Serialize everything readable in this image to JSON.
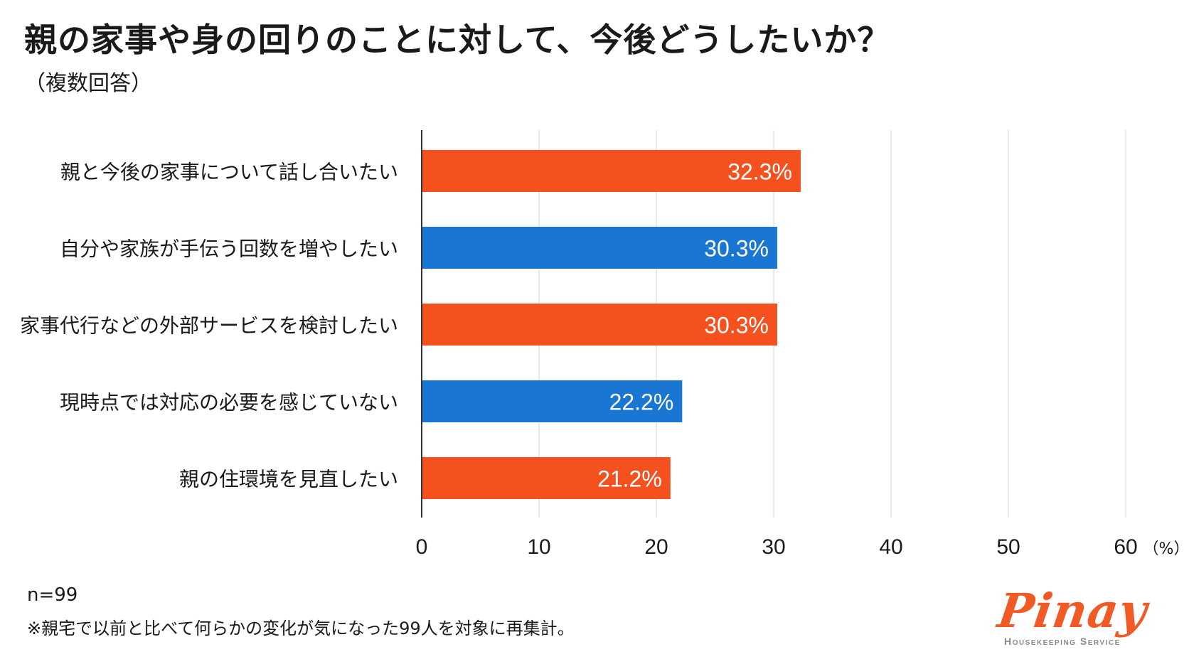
{
  "header": {
    "title": "親の家事や身の回りのことに対して、今後どうしたいか？",
    "subtitle": "（複数回答）"
  },
  "chart_data": {
    "type": "bar",
    "orientation": "horizontal",
    "categories": [
      "親と今後の家事について話し合いたい",
      "自分や家族が手伝う回数を増やしたい",
      "家事代行などの外部サービスを検討したい",
      "現時点では対応の必要を感じていない",
      "親の住環境を見直したい"
    ],
    "values": [
      32.3,
      30.3,
      30.3,
      22.2,
      21.2
    ],
    "value_labels": [
      "32.3%",
      "30.3%",
      "30.3%",
      "22.2%",
      "21.2%"
    ],
    "bar_colors": [
      "#f4511e",
      "#1976d2",
      "#f4511e",
      "#1976d2",
      "#f4511e"
    ],
    "xlim": [
      0,
      60
    ],
    "xticks": [
      "0",
      "10",
      "20",
      "30",
      "40",
      "50",
      "60"
    ],
    "xunit": "（%）",
    "grid": true
  },
  "footer": {
    "n": "n=99",
    "note": "※親宅で以前と比べて何らかの変化が気になった99人を対象に再集計。"
  },
  "logo": {
    "word": "Pinay",
    "sub": "Housekeeping Service"
  },
  "colors": {
    "orange": "#f4511e",
    "blue": "#1976d2"
  }
}
